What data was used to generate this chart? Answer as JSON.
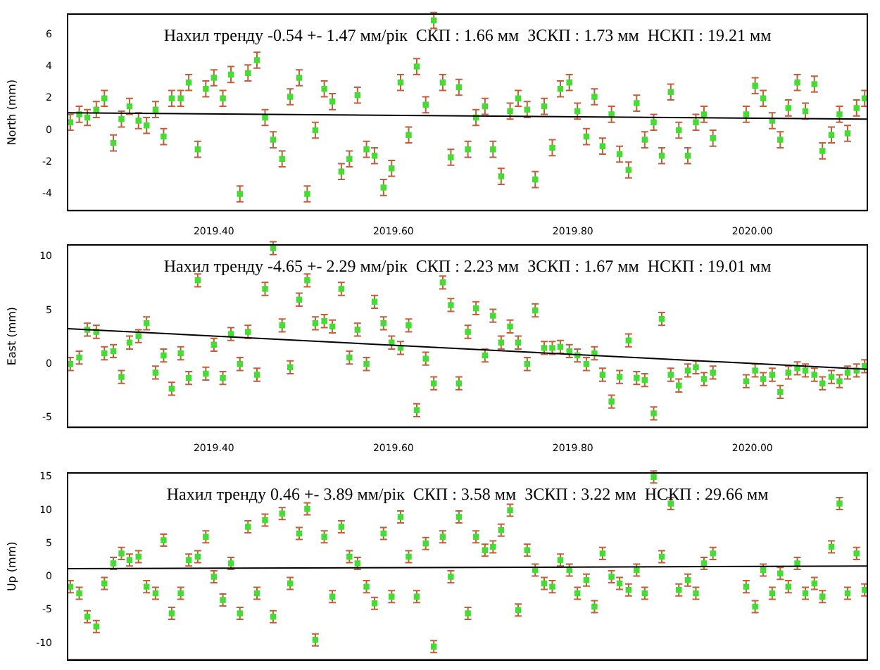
{
  "chart_data": [
    {
      "type": "scatter",
      "ylabel": "North (mm)",
      "marker": "square",
      "xlim": [
        2019.237,
        2020.128
      ],
      "ylim": [
        -5.05,
        7.3
      ],
      "yticks": [
        -4,
        -2,
        0,
        2,
        4,
        6
      ],
      "xticks": [
        {
          "value": 2019.4,
          "label": "2019.40"
        },
        {
          "value": 2019.6,
          "label": "2019.60"
        },
        {
          "value": 2019.8,
          "label": "2019.80"
        },
        {
          "value": 2020.0,
          "label": "2020.00"
        }
      ],
      "annotations": [
        "Нахил тренду -0.54 +- 1.47 мм/рік  СКП : 1.66 мм  ЗСКП : 1.73 мм  НСКП : 19.21 мм"
      ],
      "series": [
        {
          "color": "#44dd33",
          "x": [
            2019.24,
            2019.25,
            2019.259,
            2019.269,
            2019.278,
            2019.288,
            2019.297,
            2019.306,
            2019.316,
            2019.325,
            2019.335,
            2019.344,
            2019.353,
            2019.363,
            2019.372,
            2019.382,
            2019.391,
            2019.4,
            2019.41,
            2019.419,
            2019.429,
            2019.438,
            2019.448,
            2019.457,
            2019.466,
            2019.476,
            2019.485,
            2019.495,
            2019.504,
            2019.513,
            2019.523,
            2019.532,
            2019.542,
            2019.551,
            2019.56,
            2019.57,
            2019.579,
            2019.589,
            2019.598,
            2019.608,
            2019.617,
            2019.626,
            2019.636,
            2019.645,
            2019.655,
            2019.664,
            2019.673,
            2019.683,
            2019.692,
            2019.702,
            2019.711,
            2019.72,
            2019.73,
            2019.739,
            2019.749,
            2019.758,
            2019.768,
            2019.777,
            2019.786,
            2019.796,
            2019.805,
            2019.815,
            2019.824,
            2019.833,
            2019.843,
            2019.852,
            2019.862,
            2019.871,
            2019.88,
            2019.89,
            2019.899,
            2019.909,
            2019.918,
            2019.928,
            2019.937,
            2019.946,
            2019.956,
            2019.993,
            2020.003,
            2020.012,
            2020.022,
            2020.031,
            2020.04,
            2020.05,
            2020.059,
            2020.069,
            2020.078,
            2020.088,
            2020.097,
            2020.106,
            2020.116,
            2020.125
          ],
          "values": [
            0.5,
            1.0,
            0.8,
            1.3,
            2.0,
            -0.8,
            0.7,
            1.5,
            0.6,
            0.3,
            1.3,
            -0.4,
            2.0,
            2.0,
            3.0,
            -1.2,
            2.6,
            3.3,
            2.0,
            3.5,
            -4.0,
            3.6,
            4.4,
            0.8,
            -0.6,
            -1.8,
            2.1,
            3.3,
            -4.0,
            0.0,
            2.6,
            1.8,
            -2.6,
            -1.8,
            2.2,
            -1.2,
            -1.6,
            -3.6,
            -2.4,
            3.0,
            -0.3,
            4.0,
            1.6,
            6.9,
            3.0,
            -1.7,
            2.7,
            -1.2,
            0.8,
            1.5,
            -1.2,
            -2.9,
            1.2,
            2.0,
            1.3,
            -3.1,
            1.5,
            -1.1,
            2.6,
            3.0,
            1.2,
            -0.4,
            2.1,
            -1.0,
            1.0,
            -1.5,
            -2.5,
            1.7,
            -0.6,
            0.5,
            -1.6,
            2.4,
            0.0,
            -1.6,
            0.5,
            1.0,
            -0.5,
            1.0,
            2.8,
            2.0,
            0.6,
            -0.6,
            1.4,
            3.0,
            1.2,
            2.9,
            -1.3,
            -0.3,
            1.0,
            -0.2,
            1.4,
            2.0
          ],
          "errors": [
            0.5,
            0.5,
            0.5,
            0.5,
            0.5,
            0.5,
            0.5,
            0.5,
            0.5,
            0.5,
            0.5,
            0.5,
            0.5,
            0.5,
            0.5,
            0.5,
            0.5,
            0.5,
            0.5,
            0.5,
            0.5,
            0.5,
            0.5,
            0.5,
            0.5,
            0.5,
            0.5,
            0.5,
            0.5,
            0.5,
            0.5,
            0.5,
            0.5,
            0.5,
            0.5,
            0.5,
            0.5,
            0.5,
            0.5,
            0.5,
            0.5,
            0.5,
            0.5,
            0.5,
            0.5,
            0.5,
            0.5,
            0.5,
            0.5,
            0.5,
            0.5,
            0.5,
            0.5,
            0.5,
            0.5,
            0.5,
            0.5,
            0.5,
            0.5,
            0.5,
            0.5,
            0.5,
            0.5,
            0.5,
            0.5,
            0.5,
            0.5,
            0.5,
            0.5,
            0.5,
            0.5,
            0.5,
            0.5,
            0.5,
            0.5,
            0.5,
            0.5,
            0.5,
            0.5,
            0.5,
            0.5,
            0.5,
            0.5,
            0.5,
            0.5,
            0.5,
            0.5,
            0.5,
            0.5,
            0.5,
            0.5,
            0.5
          ]
        },
        {
          "type": "line",
          "marker": "none",
          "color": "#000000",
          "x": [
            2019.237,
            2020.128
          ],
          "values": [
            1.1,
            0.7
          ]
        }
      ]
    },
    {
      "type": "scatter",
      "ylabel": "East (mm)",
      "marker": "square",
      "xlim": [
        2019.237,
        2020.128
      ],
      "ylim": [
        -5.9,
        11.1
      ],
      "yticks": [
        -5,
        0,
        5,
        10
      ],
      "xticks": [
        {
          "value": 2019.4,
          "label": "2019.40"
        },
        {
          "value": 2019.6,
          "label": "2019.60"
        },
        {
          "value": 2019.8,
          "label": "2019.80"
        },
        {
          "value": 2020.0,
          "label": "2020.00"
        }
      ],
      "annotations": [
        "Нахил тренду -4.65 +- 2.29 мм/рік  СКП : 2.23 мм  ЗСКП : 1.67 мм  НСКП : 19.01 мм"
      ],
      "series": [
        {
          "color": "#44dd33",
          "x": [
            2019.24,
            2019.25,
            2019.259,
            2019.269,
            2019.278,
            2019.288,
            2019.297,
            2019.306,
            2019.316,
            2019.325,
            2019.335,
            2019.344,
            2019.353,
            2019.363,
            2019.372,
            2019.382,
            2019.391,
            2019.4,
            2019.41,
            2019.419,
            2019.429,
            2019.438,
            2019.448,
            2019.457,
            2019.466,
            2019.476,
            2019.485,
            2019.495,
            2019.504,
            2019.513,
            2019.523,
            2019.532,
            2019.542,
            2019.551,
            2019.56,
            2019.57,
            2019.579,
            2019.589,
            2019.598,
            2019.608,
            2019.617,
            2019.626,
            2019.636,
            2019.645,
            2019.655,
            2019.664,
            2019.673,
            2019.683,
            2019.692,
            2019.702,
            2019.711,
            2019.72,
            2019.73,
            2019.739,
            2019.749,
            2019.758,
            2019.768,
            2019.777,
            2019.786,
            2019.796,
            2019.805,
            2019.815,
            2019.824,
            2019.833,
            2019.843,
            2019.852,
            2019.862,
            2019.871,
            2019.88,
            2019.89,
            2019.899,
            2019.909,
            2019.918,
            2019.928,
            2019.937,
            2019.946,
            2019.956,
            2019.993,
            2020.003,
            2020.012,
            2020.022,
            2020.031,
            2020.04,
            2020.05,
            2020.059,
            2020.069,
            2020.078,
            2020.088,
            2020.097,
            2020.106,
            2020.116,
            2020.125
          ],
          "values": [
            0.0,
            0.6,
            3.2,
            3.0,
            1.0,
            1.2,
            -1.2,
            2.0,
            2.6,
            3.8,
            -0.8,
            0.8,
            -2.3,
            1.0,
            -1.3,
            7.8,
            -0.9,
            1.8,
            -1.3,
            2.8,
            0.0,
            3.0,
            -1.0,
            7.0,
            10.8,
            3.6,
            -0.3,
            6.0,
            7.8,
            3.8,
            4.0,
            3.5,
            7.0,
            0.6,
            3.2,
            0.0,
            5.8,
            3.8,
            2.0,
            1.5,
            3.6,
            -4.3,
            0.5,
            -1.8,
            7.6,
            5.5,
            -1.8,
            3.0,
            5.2,
            0.8,
            4.5,
            2.0,
            3.5,
            2.0,
            0.0,
            5.0,
            1.5,
            1.5,
            1.6,
            1.2,
            0.8,
            0.0,
            1.0,
            -1.0,
            -3.5,
            -1.2,
            2.2,
            -1.3,
            -1.5,
            -4.6,
            4.2,
            -1.0,
            -2.0,
            -0.6,
            -0.3,
            -1.4,
            -0.8,
            -1.6,
            -0.6,
            -1.4,
            -1.0,
            -2.6,
            -0.8,
            -0.4,
            -0.6,
            -1.0,
            -1.8,
            -1.2,
            -1.6,
            -0.8,
            -0.6,
            -0.2
          ],
          "errors": [
            0.6,
            0.6,
            0.6,
            0.6,
            0.6,
            0.6,
            0.6,
            0.6,
            0.6,
            0.6,
            0.6,
            0.6,
            0.6,
            0.6,
            0.6,
            0.6,
            0.6,
            0.6,
            0.6,
            0.6,
            0.6,
            0.6,
            0.6,
            0.6,
            0.6,
            0.6,
            0.6,
            0.6,
            0.6,
            0.6,
            0.6,
            0.6,
            0.6,
            0.6,
            0.6,
            0.6,
            0.6,
            0.6,
            0.6,
            0.6,
            0.6,
            0.6,
            0.6,
            0.6,
            0.6,
            0.6,
            0.6,
            0.6,
            0.6,
            0.6,
            0.6,
            0.6,
            0.6,
            0.6,
            0.6,
            0.6,
            0.6,
            0.6,
            0.6,
            0.6,
            0.6,
            0.6,
            0.6,
            0.6,
            0.6,
            0.6,
            0.6,
            0.6,
            0.6,
            0.6,
            0.6,
            0.6,
            0.6,
            0.6,
            0.6,
            0.6,
            0.6,
            0.6,
            0.6,
            0.6,
            0.6,
            0.6,
            0.6,
            0.6,
            0.6,
            0.6,
            0.6,
            0.6,
            0.6,
            0.6,
            0.6,
            0.6
          ]
        },
        {
          "type": "line",
          "marker": "none",
          "color": "#000000",
          "x": [
            2019.237,
            2020.128
          ],
          "values": [
            3.3,
            -0.5
          ]
        }
      ]
    },
    {
      "type": "scatter",
      "ylabel": "Up (mm)",
      "marker": "square",
      "tick_labels": "y",
      "xlim": [
        2019.237,
        2020.128
      ],
      "ylim": [
        -12.5,
        15.6
      ],
      "yticks": [
        -10,
        -5,
        0,
        5,
        10,
        15
      ],
      "xticks": [
        {
          "value": 2019.4,
          "label": null
        },
        {
          "value": 2019.6,
          "label": null
        },
        {
          "value": 2019.8,
          "label": null
        },
        {
          "value": 2020.0,
          "label": null
        }
      ],
      "annotations": [
        "Нахил тренду 0.46 +- 3.89 мм/рік  СКП : 3.58 мм  ЗСКП : 3.22 мм  НСКП : 29.66 мм"
      ],
      "series": [
        {
          "color": "#44dd33",
          "x": [
            2019.24,
            2019.25,
            2019.259,
            2019.269,
            2019.278,
            2019.288,
            2019.297,
            2019.306,
            2019.316,
            2019.325,
            2019.335,
            2019.344,
            2019.353,
            2019.363,
            2019.372,
            2019.382,
            2019.391,
            2019.4,
            2019.41,
            2019.419,
            2019.429,
            2019.438,
            2019.448,
            2019.457,
            2019.466,
            2019.476,
            2019.485,
            2019.495,
            2019.504,
            2019.513,
            2019.523,
            2019.532,
            2019.542,
            2019.551,
            2019.56,
            2019.57,
            2019.579,
            2019.589,
            2019.598,
            2019.608,
            2019.617,
            2019.626,
            2019.636,
            2019.645,
            2019.655,
            2019.664,
            2019.673,
            2019.683,
            2019.692,
            2019.702,
            2019.711,
            2019.72,
            2019.73,
            2019.739,
            2019.749,
            2019.758,
            2019.768,
            2019.777,
            2019.786,
            2019.796,
            2019.805,
            2019.815,
            2019.824,
            2019.833,
            2019.843,
            2019.852,
            2019.862,
            2019.871,
            2019.88,
            2019.89,
            2019.899,
            2019.909,
            2019.918,
            2019.928,
            2019.937,
            2019.946,
            2019.956,
            2019.993,
            2020.003,
            2020.012,
            2020.022,
            2020.031,
            2020.04,
            2020.05,
            2020.059,
            2020.069,
            2020.078,
            2020.088,
            2020.097,
            2020.106,
            2020.116,
            2020.125
          ],
          "values": [
            -1.5,
            -2.5,
            -6.0,
            -7.5,
            -1.0,
            2.0,
            3.5,
            2.5,
            3.0,
            -1.5,
            -2.5,
            5.5,
            -5.5,
            -2.5,
            2.5,
            3.0,
            6.0,
            0.0,
            -3.5,
            2.0,
            -5.5,
            7.5,
            -2.5,
            8.5,
            -6.0,
            9.5,
            -1.0,
            6.5,
            10.2,
            -9.5,
            6.0,
            -3.0,
            7.5,
            3.0,
            2.0,
            -1.5,
            -4.0,
            6.5,
            -3.0,
            9.0,
            3.0,
            -3.0,
            5.0,
            -10.5,
            6.0,
            0.0,
            9.0,
            -5.5,
            6.0,
            4.0,
            4.5,
            7.0,
            10.0,
            -5.0,
            4.0,
            1.0,
            -1.0,
            -1.5,
            2.5,
            1.0,
            -2.5,
            -0.5,
            -4.5,
            3.5,
            0.0,
            -1.0,
            -2.0,
            1.0,
            -2.5,
            15.0,
            3.0,
            11.0,
            -2.0,
            -0.5,
            -2.5,
            2.0,
            3.5,
            -1.5,
            -4.5,
            1.0,
            -2.5,
            0.5,
            -1.5,
            2.0,
            -2.5,
            -1.0,
            -3.0,
            4.5,
            11.0,
            -2.5,
            3.5,
            -2.0
          ],
          "errors": [
            0.9,
            0.9,
            0.9,
            0.9,
            0.9,
            0.9,
            0.9,
            0.9,
            0.9,
            0.9,
            0.9,
            0.9,
            0.9,
            0.9,
            0.9,
            0.9,
            0.9,
            0.9,
            0.9,
            0.9,
            0.9,
            0.9,
            0.9,
            0.9,
            0.9,
            0.9,
            0.9,
            0.9,
            0.9,
            0.9,
            0.9,
            0.9,
            0.9,
            0.9,
            0.9,
            0.9,
            0.9,
            0.9,
            0.9,
            0.9,
            0.9,
            0.9,
            0.9,
            0.9,
            0.9,
            0.9,
            0.9,
            0.9,
            0.9,
            0.9,
            0.9,
            0.9,
            0.9,
            0.9,
            0.9,
            0.9,
            0.9,
            0.9,
            0.9,
            0.9,
            0.9,
            0.9,
            0.9,
            0.9,
            0.9,
            0.9,
            0.9,
            0.9,
            0.9,
            0.9,
            0.9,
            0.9,
            0.9,
            0.9,
            0.9,
            0.9,
            0.9,
            0.9,
            0.9,
            0.9,
            0.9,
            0.9,
            0.9,
            0.9,
            0.9,
            0.9,
            0.9,
            0.9,
            0.9,
            0.9,
            0.9,
            0.9
          ]
        },
        {
          "type": "line",
          "marker": "none",
          "color": "#000000",
          "x": [
            2019.237,
            2020.128
          ],
          "values": [
            1.2,
            1.6
          ]
        }
      ]
    }
  ]
}
